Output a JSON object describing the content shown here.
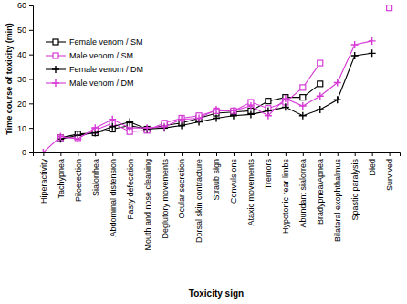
{
  "chart_data": {
    "type": "line",
    "xlabel": "Toxicity sign",
    "ylabel": "Time course of toxicity (min)",
    "categories": [
      "Hiperactivity",
      "Tachypnea",
      "Piloerection",
      "Sialorrhea",
      "Abdominal distension",
      "Pasty defecation",
      "Mouth and nose cleaning",
      "Deglutory movements",
      "Ocular secretion",
      "Dorsal skin contracture",
      "Straub sign",
      "Convulsions",
      "Ataxic movements",
      "Tremors",
      "Hypotonic rear limbs",
      "Abundant sialorrea",
      "Bradypnea/Apnea",
      "Bilateral exophthalmus",
      "Spastic paralysis",
      "Died",
      "Survived"
    ],
    "series": [
      {
        "name": "Female venom / SM",
        "color": "#000000",
        "marker": "square",
        "values": [
          null,
          6,
          7.5,
          8,
          9.5,
          11,
          9.5,
          11,
          12,
          14,
          16,
          16.5,
          17,
          21,
          22.5,
          22.5,
          28,
          null,
          null,
          null,
          null
        ]
      },
      {
        "name": "Male venom / SM",
        "color": "#d63bd6",
        "marker": "square",
        "values": [
          null,
          6,
          6,
          9,
          12,
          8.5,
          9,
          12,
          14,
          15,
          17,
          17,
          20.5,
          18,
          20.5,
          26.5,
          36.5,
          null,
          null,
          null,
          59
        ]
      },
      {
        "name": "Female venom / DM",
        "color": "#000000",
        "marker": "plus",
        "values": [
          null,
          5.5,
          7,
          8,
          10.5,
          12.5,
          9.5,
          10,
          11,
          12.5,
          14,
          15,
          15.5,
          17,
          18.5,
          15,
          17.5,
          21.5,
          39.5,
          40.5,
          null
        ]
      },
      {
        "name": "Male venom / DM",
        "color": "#d63bd6",
        "marker": "plus",
        "values": [
          0,
          6.5,
          5.5,
          10,
          13.5,
          10,
          10,
          10.5,
          13.5,
          14,
          17.5,
          17,
          19,
          15,
          22,
          19,
          23,
          28.5,
          44,
          45.5,
          null
        ]
      }
    ],
    "ylim": [
      0,
      60
    ],
    "yticks": [
      0,
      10,
      20,
      30,
      40,
      50,
      60
    ],
    "grid": false,
    "legend": "upper left"
  }
}
